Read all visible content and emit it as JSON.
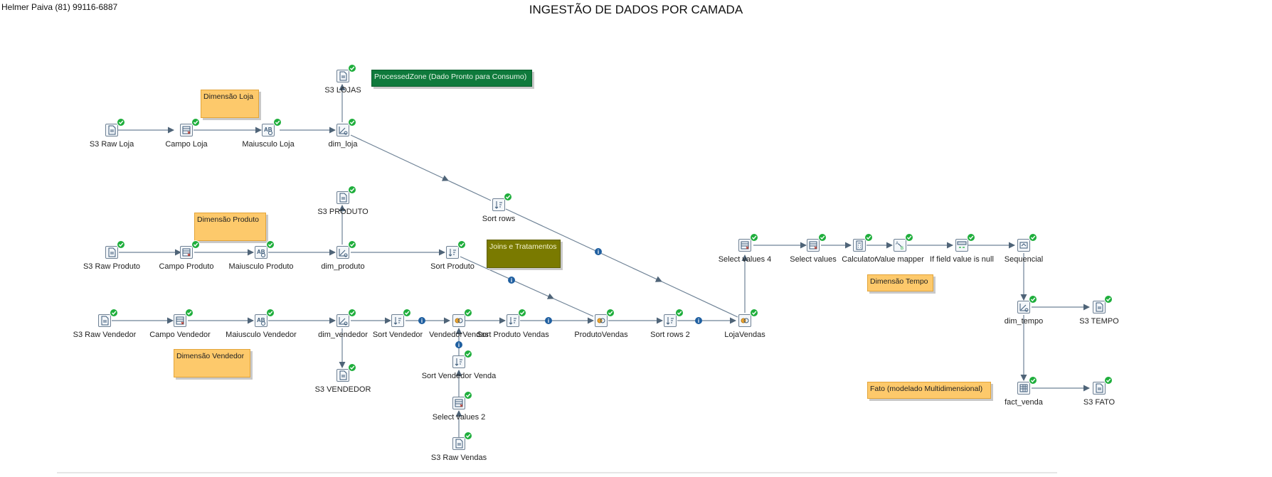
{
  "author": "Helmer Paiva (81) 99116-6887",
  "title": "INGESTÃO DE DADOS POR CAMADA",
  "notes": {
    "processed_zone": "ProcessedZone (Dado Pronto para Consumo)",
    "dim_loja": "Dimensão Loja",
    "dim_produto": "Dimensão Produto",
    "joins": "Joins e Tratamentos",
    "dim_vendedor": "Dimensão Vendedor",
    "dim_tempo": "Dimensão Tempo",
    "fato": "Fato (modelado Multidimensional)"
  },
  "steps": {
    "s3_lojas": {
      "label": "S3 LOJAS",
      "icon": "file-output-icon"
    },
    "s3_raw_loja": {
      "label": "S3 Raw Loja",
      "icon": "file-input-icon"
    },
    "campo_loja": {
      "label": "Campo Loja",
      "icon": "select-fields-icon"
    },
    "maiusculo_loja": {
      "label": "Maiusculo Loja",
      "icon": "string-operation-icon"
    },
    "dim_loja": {
      "label": "dim_loja",
      "icon": "dimension-lookup-icon"
    },
    "s3_produto": {
      "label": "S3 PRODUTO",
      "icon": "file-output-icon"
    },
    "sort_rows": {
      "label": "Sort rows",
      "icon": "sort-icon"
    },
    "s3_raw_produto": {
      "label": "S3 Raw Produto",
      "icon": "file-input-icon"
    },
    "campo_produto": {
      "label": "Campo Produto",
      "icon": "select-fields-icon"
    },
    "maiusculo_produto": {
      "label": "Maiusculo Produto",
      "icon": "string-operation-icon"
    },
    "dim_produto": {
      "label": "dim_produto",
      "icon": "dimension-lookup-icon"
    },
    "sort_produto": {
      "label": "Sort Produto",
      "icon": "sort-icon"
    },
    "s3_raw_vendedor": {
      "label": "S3 Raw Vendedor",
      "icon": "file-input-icon"
    },
    "campo_vendedor": {
      "label": "Campo Vendedor",
      "icon": "select-fields-icon"
    },
    "maiusculo_vendedor": {
      "label": "Maiusculo Vendedor",
      "icon": "string-operation-icon"
    },
    "dim_vendedor": {
      "label": "dim_vendedor",
      "icon": "dimension-lookup-icon"
    },
    "sort_vendedor": {
      "label": "Sort Vendedor",
      "icon": "sort-icon"
    },
    "vendedor_vendas": {
      "label": "VendedorVendas",
      "icon": "merge-join-icon"
    },
    "sort_produto_vendas": {
      "label": "Sort Produto Vendas",
      "icon": "sort-icon"
    },
    "produto_vendas": {
      "label": "ProdutoVendas",
      "icon": "merge-join-icon"
    },
    "sort_rows_2": {
      "label": "Sort rows 2",
      "icon": "sort-icon"
    },
    "loja_vendas": {
      "label": "LojaVendas",
      "icon": "merge-join-icon"
    },
    "s3_vendedor": {
      "label": "S3 VENDEDOR",
      "icon": "file-output-icon"
    },
    "sort_vendedor_venda": {
      "label": "Sort Vendedor Venda",
      "icon": "sort-icon"
    },
    "select_values_2": {
      "label": "Select values 2",
      "icon": "select-fields-icon"
    },
    "s3_raw_vendas": {
      "label": "S3 Raw Vendas",
      "icon": "file-input-icon"
    },
    "select_values_4": {
      "label": "Select values 4",
      "icon": "select-fields-icon"
    },
    "select_values": {
      "label": "Select values",
      "icon": "select-fields-icon"
    },
    "calculator": {
      "label": "Calculator",
      "icon": "calculator-icon"
    },
    "value_mapper": {
      "label": "Value mapper",
      "icon": "value-mapper-icon"
    },
    "if_null": {
      "label": "If field value is null",
      "icon": "if-null-icon"
    },
    "sequencial": {
      "label": "Sequencial",
      "icon": "sequence-icon"
    },
    "dim_tempo": {
      "label": "dim_tempo",
      "icon": "dimension-lookup-icon"
    },
    "s3_tempo": {
      "label": "S3 TEMPO",
      "icon": "file-output-icon"
    },
    "fact_venda": {
      "label": "fact_venda",
      "icon": "table-output-icon"
    },
    "s3_fato": {
      "label": "S3 FATO",
      "icon": "file-output-icon"
    }
  }
}
